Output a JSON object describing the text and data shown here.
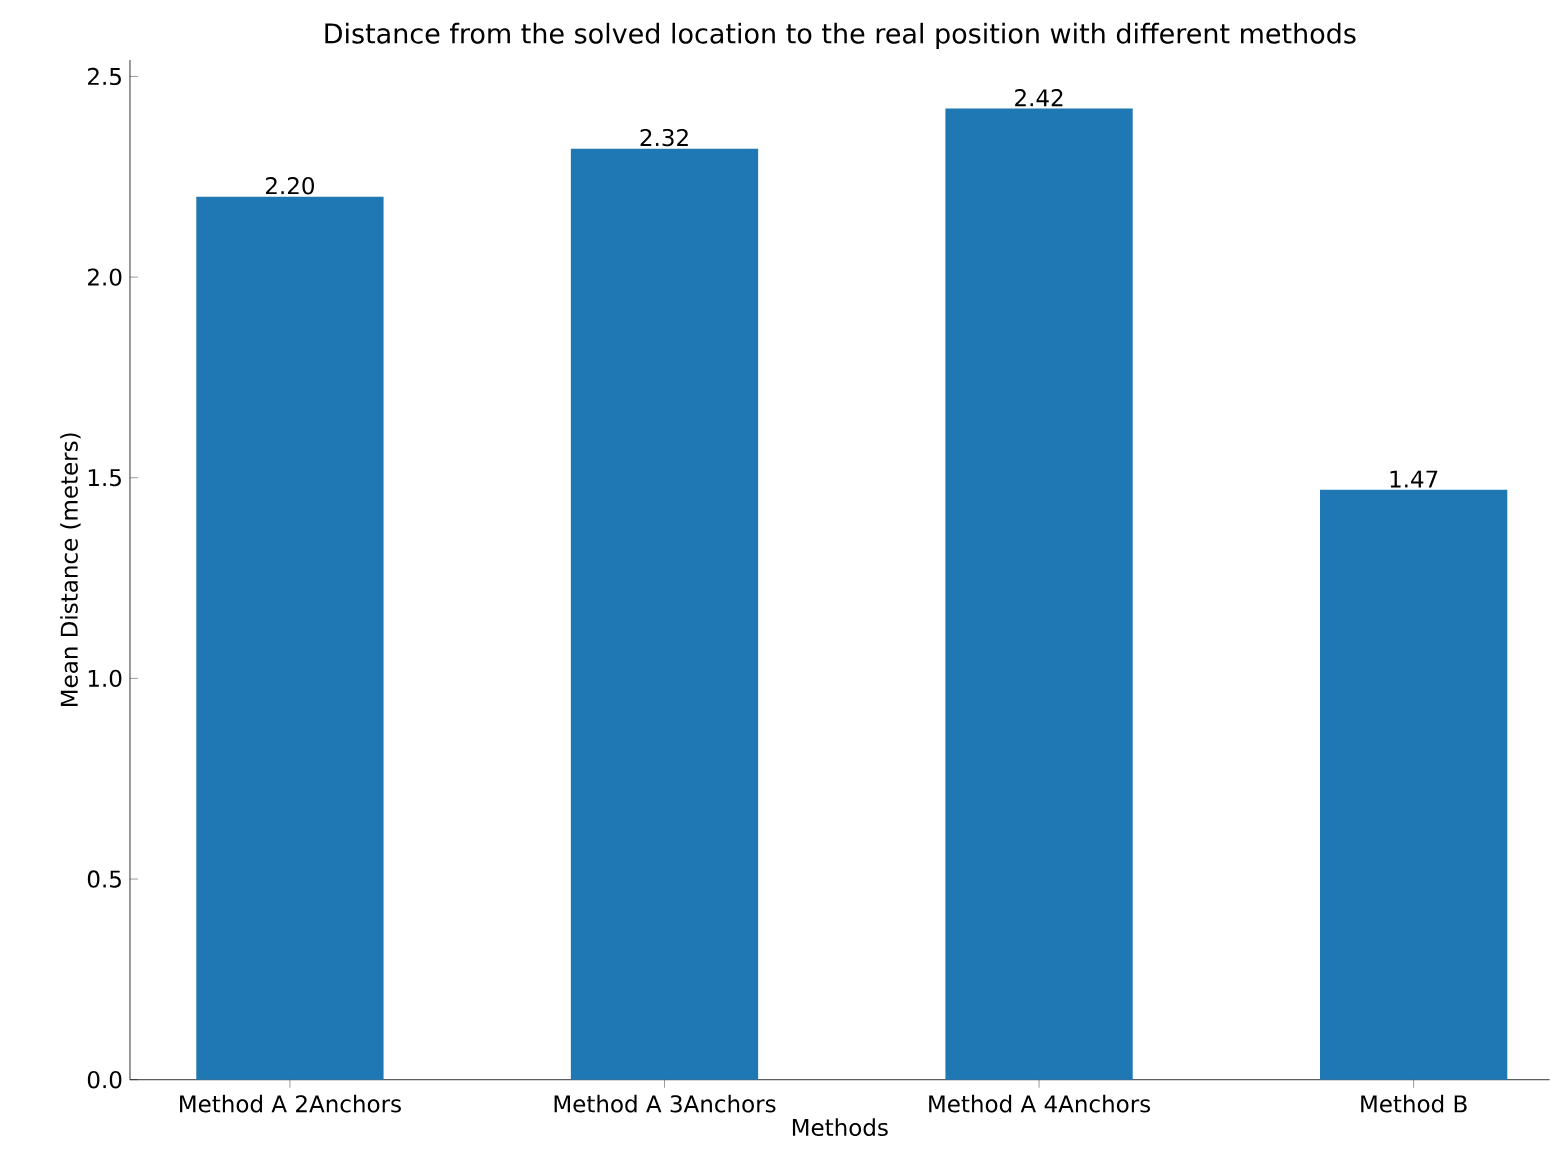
{
  "chart_data": {
    "type": "bar",
    "title": "Distance from the solved location to the real position with different methods",
    "xlabel": "Methods",
    "ylabel": "Mean Distance (meters)",
    "categories": [
      "Method A 2Anchors",
      "Method A 3Anchors",
      "Method A 4Anchors",
      "Method B"
    ],
    "values": [
      2.2,
      2.32,
      2.42,
      1.47
    ],
    "value_labels": [
      "2.20",
      "2.32",
      "2.42",
      "1.47"
    ],
    "color": "#1f77b4",
    "ylim": [
      0,
      2.541
    ],
    "yticks": [
      {
        "value": 0,
        "label": "0.0"
      },
      {
        "value": 0.5,
        "label": "0.5"
      },
      {
        "value": 1,
        "label": "1.0"
      },
      {
        "value": 1.5,
        "label": "1.5"
      },
      {
        "value": 2,
        "label": "2.0"
      },
      {
        "value": 2.5,
        "label": "2.5"
      }
    ],
    "grid": false
  }
}
